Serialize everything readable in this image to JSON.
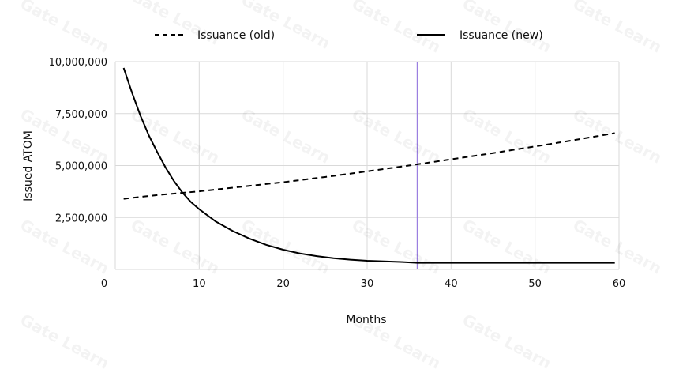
{
  "chart_data": {
    "type": "line",
    "title": "",
    "xlabel": "Months",
    "ylabel": "Issued ATOM",
    "xlim": [
      0,
      60
    ],
    "ylim": [
      0,
      10000000
    ],
    "x_ticks": [
      0,
      10,
      20,
      30,
      40,
      50,
      60
    ],
    "y_ticks": [
      2500000,
      5000000,
      7500000,
      10000000
    ],
    "x_tick_labels": [
      "0",
      "10",
      "20",
      "30",
      "40",
      "50",
      "60"
    ],
    "y_tick_labels": [
      "2,500,000",
      "5,000,000",
      "7,500,000",
      "10,000,000"
    ],
    "grid": true,
    "legend_position": "top-center",
    "vertical_marker_x": 36,
    "vertical_marker_color": "#9b7fe0",
    "series": [
      {
        "name": "Issuance (old)",
        "style": "dashed",
        "color": "#000000",
        "x": [
          1,
          5,
          10,
          15,
          20,
          25,
          30,
          36,
          40,
          45,
          50,
          55,
          59.5
        ],
        "y": [
          3400000,
          3580000,
          3760000,
          3980000,
          4200000,
          4450000,
          4720000,
          5060000,
          5300000,
          5600000,
          5920000,
          6250000,
          6560000
        ]
      },
      {
        "name": "Issuance (new)",
        "style": "solid",
        "color": "#000000",
        "x": [
          1,
          2,
          3,
          4,
          5,
          6,
          7,
          8,
          9,
          10,
          12,
          14,
          16,
          18,
          20,
          22,
          24,
          26,
          28,
          30,
          32,
          34,
          36,
          40,
          45,
          50,
          55,
          59.5
        ],
        "y": [
          9700000,
          8500000,
          7400000,
          6450000,
          5650000,
          4900000,
          4250000,
          3700000,
          3250000,
          2900000,
          2300000,
          1850000,
          1480000,
          1180000,
          950000,
          770000,
          640000,
          540000,
          470000,
          420000,
          390000,
          360000,
          320000,
          320000,
          320000,
          320000,
          320000,
          320000
        ]
      }
    ]
  },
  "watermark_text": "Gate Learn"
}
